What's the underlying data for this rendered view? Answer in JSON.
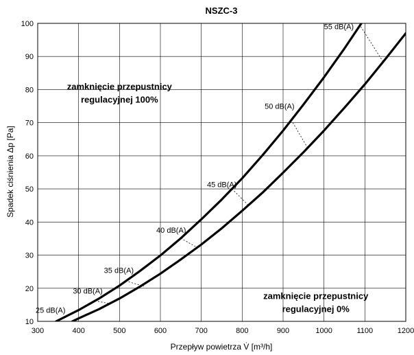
{
  "chart_data": {
    "type": "line",
    "title": "NSZC-3",
    "xlabel": "Przepływ powietrza V̇ [m³/h]",
    "ylabel": "Spadek ciśnienia Δp [Pa]",
    "xlim": [
      300,
      1200
    ],
    "ylim": [
      10,
      100
    ],
    "xticks": [
      300,
      400,
      500,
      600,
      700,
      800,
      900,
      1000,
      1100,
      1200
    ],
    "yticks": [
      10,
      20,
      30,
      40,
      50,
      60,
      70,
      80,
      90,
      100
    ],
    "grid": true,
    "series": [
      {
        "curve": "upper",
        "x": [
          345,
          400,
          450,
          500,
          550,
          600,
          650,
          700,
          750,
          800,
          850,
          900,
          950,
          1000,
          1050,
          1100
        ],
        "y": [
          10,
          13.4,
          16.9,
          20.8,
          25.2,
          29.9,
          35.1,
          40.8,
          46.8,
          53.2,
          60.2,
          67.6,
          75.5,
          83.7,
          92.4,
          101.6
        ]
      },
      {
        "curve": "lower",
        "x": [
          385,
          400,
          450,
          500,
          550,
          600,
          650,
          700,
          750,
          800,
          850,
          900,
          950,
          1000,
          1050,
          1100,
          1150,
          1200
        ],
        "y": [
          10,
          10.9,
          13.7,
          16.9,
          20.5,
          24.4,
          28.7,
          33.2,
          38.1,
          43.4,
          48.9,
          54.9,
          61.1,
          67.6,
          74.5,
          81.6,
          89.2,
          97
        ]
      }
    ],
    "dB_lines": [
      {
        "label": "25 dB(A)",
        "x1": 345,
        "y1": 10,
        "x2": 385,
        "y2": 10,
        "text_x": 295,
        "text_y": 12.6
      },
      {
        "label": "30 dB(A)",
        "x1": 440,
        "y1": 16.2,
        "x2": 478,
        "y2": 15.3,
        "text_x": 386,
        "text_y": 18.4
      },
      {
        "label": "35 dB(A)",
        "x1": 515,
        "y1": 22.2,
        "x2": 560,
        "y2": 20.6,
        "text_x": 462,
        "text_y": 24.6
      },
      {
        "label": "40 dB(A)",
        "x1": 650,
        "y1": 35.1,
        "x2": 690,
        "y2": 32.3,
        "text_x": 590,
        "text_y": 36.7
      },
      {
        "label": "45 dB(A)",
        "x1": 775,
        "y1": 50.0,
        "x2": 815,
        "y2": 45.1,
        "text_x": 714,
        "text_y": 50.5
      },
      {
        "label": "50 dB(A)",
        "x1": 920,
        "y1": 70.8,
        "x2": 960,
        "y2": 62.4,
        "text_x": 855,
        "text_y": 74.2
      },
      {
        "label": "55 dB(A)",
        "x1": 1090,
        "y1": 99.0,
        "x2": 1145,
        "y2": 88.3,
        "text_x": 1000,
        "text_y": 98.2
      }
    ],
    "annotations": [
      {
        "lines": [
          "zamknięcie przepustnicy",
          "regulacyjnej 100%"
        ],
        "x": 500,
        "y": 80
      },
      {
        "lines": [
          "zamknięcie przepustnicy",
          "regulacyjnej 0%"
        ],
        "x": 980,
        "y": 16.7
      }
    ]
  }
}
